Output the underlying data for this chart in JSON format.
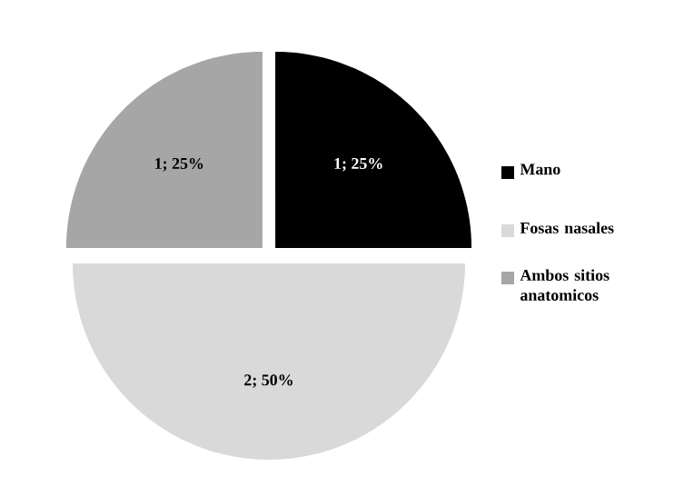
{
  "chart_data": {
    "type": "pie",
    "categories": [
      "Mano",
      "Fosas nasales",
      "Ambos sitios anatomicos"
    ],
    "values": [
      1,
      2,
      1
    ],
    "colors": [
      "#000000",
      "#d9d9d9",
      "#a6a6a6"
    ],
    "value_labels": [
      "1; 25%",
      "2; 50%",
      "1; 25%"
    ],
    "legend": "right"
  }
}
